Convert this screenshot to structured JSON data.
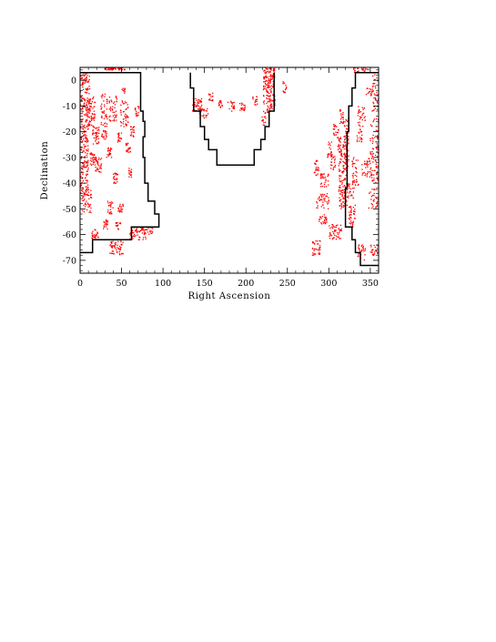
{
  "chart_data": {
    "type": "scatter",
    "xlabel": "Right Ascension",
    "ylabel": "Declination",
    "xlim": [
      0,
      360
    ],
    "ylim": [
      -75,
      5
    ],
    "x_ticks": [
      0,
      50,
      100,
      150,
      200,
      250,
      300,
      350
    ],
    "y_ticks": [
      0,
      -10,
      -20,
      -30,
      -40,
      -50,
      -60,
      -70
    ],
    "grid": false,
    "point_color": "#ff0000",
    "line_color": "#000000",
    "boundaries": [
      {
        "name": "",
        "points": [
          [
            0,
            3
          ],
          [
            73,
            3
          ],
          [
            73,
            -12
          ],
          [
            76,
            -12
          ],
          [
            76,
            -16
          ],
          [
            78,
            -16
          ],
          [
            78,
            -22
          ],
          [
            76,
            -22
          ],
          [
            76,
            -30
          ],
          [
            78,
            -30
          ],
          [
            78,
            -40
          ],
          [
            82,
            -40
          ],
          [
            82,
            -47
          ],
          [
            90,
            -47
          ],
          [
            90,
            -52
          ],
          [
            95,
            -52
          ],
          [
            95,
            -57
          ],
          [
            62,
            -57
          ],
          [
            62,
            -62
          ],
          [
            15,
            -62
          ],
          [
            15,
            -67
          ],
          [
            0,
            -67
          ]
        ]
      },
      {
        "name": "",
        "points": [
          [
            133,
            3
          ],
          [
            133,
            -3
          ],
          [
            137,
            -3
          ],
          [
            137,
            -12
          ],
          [
            145,
            -12
          ],
          [
            145,
            -18
          ],
          [
            150,
            -18
          ],
          [
            150,
            -23
          ],
          [
            155,
            -23
          ],
          [
            155,
            -27
          ],
          [
            165,
            -27
          ],
          [
            165,
            -33
          ],
          [
            210,
            -33
          ],
          [
            210,
            -27
          ],
          [
            218,
            -27
          ],
          [
            218,
            -23
          ],
          [
            223,
            -23
          ],
          [
            223,
            -18
          ],
          [
            228,
            -18
          ],
          [
            228,
            -12
          ],
          [
            234,
            -12
          ],
          [
            234,
            3
          ]
        ]
      },
      {
        "name": "",
        "points": [
          [
            361,
            3
          ],
          [
            332,
            3
          ],
          [
            332,
            -3
          ],
          [
            328,
            -3
          ],
          [
            328,
            -10
          ],
          [
            324,
            -10
          ],
          [
            324,
            -20
          ],
          [
            322,
            -20
          ],
          [
            322,
            -42
          ],
          [
            320,
            -42
          ],
          [
            320,
            -57
          ],
          [
            328,
            -57
          ],
          [
            328,
            -62
          ],
          [
            332,
            -62
          ],
          [
            332,
            -67
          ],
          [
            338,
            -67
          ],
          [
            338,
            -72
          ],
          [
            361,
            -72
          ]
        ]
      }
    ],
    "point_regions": [
      {
        "ra": [
          0,
          12
        ],
        "dec": [
          -18,
          3
        ],
        "n": 140
      },
      {
        "ra": [
          0,
          10
        ],
        "dec": [
          -45,
          -18
        ],
        "n": 160
      },
      {
        "ra": [
          2,
          14
        ],
        "dec": [
          -52,
          -42
        ],
        "n": 40
      },
      {
        "ra": [
          30,
          40
        ],
        "dec": [
          4,
          5
        ],
        "n": 20
      },
      {
        "ra": [
          37,
          56
        ],
        "dec": [
          4,
          5
        ],
        "n": 30
      },
      {
        "ra": [
          10,
          18
        ],
        "dec": [
          -18,
          -6
        ],
        "n": 60
      },
      {
        "ra": [
          15,
          23
        ],
        "dec": [
          -25,
          -18
        ],
        "n": 40
      },
      {
        "ra": [
          12,
          20
        ],
        "dec": [
          -33,
          -28
        ],
        "n": 35
      },
      {
        "ra": [
          18,
          26
        ],
        "dec": [
          -36,
          -30
        ],
        "n": 30
      },
      {
        "ra": [
          25,
          33
        ],
        "dec": [
          -18,
          -5
        ],
        "n": 45
      },
      {
        "ra": [
          35,
          45
        ],
        "dec": [
          -16,
          -6
        ],
        "n": 45
      },
      {
        "ra": [
          48,
          58
        ],
        "dec": [
          -18,
          -8
        ],
        "n": 45
      },
      {
        "ra": [
          50,
          55
        ],
        "dec": [
          -5,
          -3
        ],
        "n": 12
      },
      {
        "ra": [
          26,
          32
        ],
        "dec": [
          -23,
          -19
        ],
        "n": 20
      },
      {
        "ra": [
          32,
          38
        ],
        "dec": [
          -30,
          -26
        ],
        "n": 25
      },
      {
        "ra": [
          45,
          50
        ],
        "dec": [
          -24,
          -20
        ],
        "n": 20
      },
      {
        "ra": [
          55,
          61
        ],
        "dec": [
          -28,
          -24
        ],
        "n": 20
      },
      {
        "ra": [
          60,
          66
        ],
        "dec": [
          -22,
          -18
        ],
        "n": 20
      },
      {
        "ra": [
          66,
          71
        ],
        "dec": [
          -14,
          -10
        ],
        "n": 15
      },
      {
        "ra": [
          40,
          46
        ],
        "dec": [
          -40,
          -36
        ],
        "n": 20
      },
      {
        "ra": [
          58,
          62
        ],
        "dec": [
          -38,
          -34
        ],
        "n": 15
      },
      {
        "ra": [
          33,
          40
        ],
        "dec": [
          -52,
          -47
        ],
        "n": 25
      },
      {
        "ra": [
          46,
          52
        ],
        "dec": [
          -52,
          -48
        ],
        "n": 20
      },
      {
        "ra": [
          28,
          34
        ],
        "dec": [
          -58,
          -54
        ],
        "n": 20
      },
      {
        "ra": [
          43,
          49
        ],
        "dec": [
          -58,
          -55
        ],
        "n": 18
      },
      {
        "ra": [
          14,
          22
        ],
        "dec": [
          -62,
          -58
        ],
        "n": 25
      },
      {
        "ra": [
          36,
          52
        ],
        "dec": [
          -68,
          -62
        ],
        "n": 55
      },
      {
        "ra": [
          60,
          80
        ],
        "dec": [
          -62,
          -57
        ],
        "n": 60
      },
      {
        "ra": [
          74,
          88
        ],
        "dec": [
          -60,
          -57
        ],
        "n": 30
      },
      {
        "ra": [
          135,
          147
        ],
        "dec": [
          -12,
          -7
        ],
        "n": 45
      },
      {
        "ra": [
          155,
          160
        ],
        "dec": [
          -8,
          -5
        ],
        "n": 15
      },
      {
        "ra": [
          143,
          155
        ],
        "dec": [
          -15,
          -11
        ],
        "n": 25
      },
      {
        "ra": [
          167,
          172
        ],
        "dec": [
          -11,
          -8
        ],
        "n": 15
      },
      {
        "ra": [
          178,
          186
        ],
        "dec": [
          -12,
          -8
        ],
        "n": 20
      },
      {
        "ra": [
          192,
          199
        ],
        "dec": [
          -12,
          -8
        ],
        "n": 20
      },
      {
        "ra": [
          208,
          214
        ],
        "dec": [
          -10,
          -6
        ],
        "n": 15
      },
      {
        "ra": [
          219,
          224
        ],
        "dec": [
          -18,
          -12
        ],
        "n": 15
      },
      {
        "ra": [
          221,
          235
        ],
        "dec": [
          -10,
          5
        ],
        "n": 160
      },
      {
        "ra": [
          225,
          232
        ],
        "dec": [
          -14,
          -10
        ],
        "n": 20
      },
      {
        "ra": [
          244,
          249
        ],
        "dec": [
          -5,
          0
        ],
        "n": 15
      },
      {
        "ra": [
          281,
          288
        ],
        "dec": [
          -37,
          -31
        ],
        "n": 25
      },
      {
        "ra": [
          290,
          300
        ],
        "dec": [
          -42,
          -36
        ],
        "n": 30
      },
      {
        "ra": [
          298,
          304
        ],
        "dec": [
          -30,
          -24
        ],
        "n": 20
      },
      {
        "ra": [
          302,
          308
        ],
        "dec": [
          -35,
          -29
        ],
        "n": 20
      },
      {
        "ra": [
          305,
          312
        ],
        "dec": [
          -22,
          -17
        ],
        "n": 20
      },
      {
        "ra": [
          310,
          316
        ],
        "dec": [
          -28,
          -22
        ],
        "n": 20
      },
      {
        "ra": [
          312,
          322
        ],
        "dec": [
          -50,
          -25
        ],
        "n": 150
      },
      {
        "ra": [
          313,
          318
        ],
        "dec": [
          -17,
          -11
        ],
        "n": 20
      },
      {
        "ra": [
          318,
          324
        ],
        "dec": [
          -35,
          -15
        ],
        "n": 60
      },
      {
        "ra": [
          322,
          330
        ],
        "dec": [
          -46,
          -40
        ],
        "n": 25
      },
      {
        "ra": [
          324,
          332
        ],
        "dec": [
          -57,
          -48
        ],
        "n": 40
      },
      {
        "ra": [
          328,
          336
        ],
        "dec": [
          -42,
          -30
        ],
        "n": 40
      },
      {
        "ra": [
          334,
          340
        ],
        "dec": [
          -24,
          -19
        ],
        "n": 20
      },
      {
        "ra": [
          340,
          350
        ],
        "dec": [
          -38,
          -30
        ],
        "n": 35
      },
      {
        "ra": [
          335,
          344
        ],
        "dec": [
          -18,
          -10
        ],
        "n": 30
      },
      {
        "ra": [
          345,
          352
        ],
        "dec": [
          -6,
          -3
        ],
        "n": 15
      },
      {
        "ra": [
          350,
          360
        ],
        "dec": [
          -40,
          -15
        ],
        "n": 90
      },
      {
        "ra": [
          352,
          360
        ],
        "dec": [
          -12,
          3
        ],
        "n": 40
      },
      {
        "ra": [
          330,
          336
        ],
        "dec": [
          3,
          5
        ],
        "n": 12
      },
      {
        "ra": [
          340,
          348
        ],
        "dec": [
          3,
          5
        ],
        "n": 12
      },
      {
        "ra": [
          300,
          316
        ],
        "dec": [
          -62,
          -56
        ],
        "n": 50
      },
      {
        "ra": [
          285,
          300
        ],
        "dec": [
          -50,
          -44
        ],
        "n": 40
      },
      {
        "ra": [
          288,
          298
        ],
        "dec": [
          -56,
          -52
        ],
        "n": 25
      },
      {
        "ra": [
          280,
          290
        ],
        "dec": [
          -68,
          -62
        ],
        "n": 35
      },
      {
        "ra": [
          335,
          345
        ],
        "dec": [
          -70,
          -64
        ],
        "n": 30
      },
      {
        "ra": [
          350,
          360
        ],
        "dec": [
          -68,
          -64
        ],
        "n": 25
      },
      {
        "ra": [
          348,
          360
        ],
        "dec": [
          -50,
          -42
        ],
        "n": 30
      }
    ]
  }
}
